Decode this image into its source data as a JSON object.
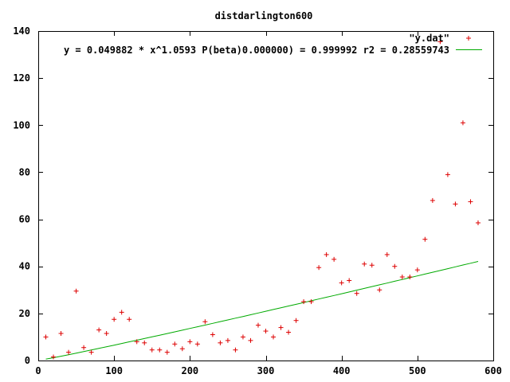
{
  "chart_data": {
    "type": "scatter",
    "title": "distdarlington600",
    "xlabel": "",
    "ylabel": "",
    "xlim": [
      0,
      600
    ],
    "ylim": [
      0,
      140
    ],
    "x_ticks": [
      0,
      100,
      200,
      300,
      400,
      500,
      600
    ],
    "y_ticks": [
      0,
      20,
      40,
      60,
      80,
      100,
      120,
      140
    ],
    "grid": false,
    "legend_position": "top-right",
    "series": [
      {
        "name": "\"y.dat\"",
        "kind": "points",
        "marker": "plus",
        "color": "#dd0000",
        "points": [
          [
            10,
            10
          ],
          [
            20,
            1.5
          ],
          [
            30,
            11.5
          ],
          [
            40,
            3.5
          ],
          [
            50,
            29.5
          ],
          [
            60,
            5.5
          ],
          [
            70,
            3.5
          ],
          [
            80,
            13
          ],
          [
            90,
            11.5
          ],
          [
            100,
            17.5
          ],
          [
            110,
            20.5
          ],
          [
            120,
            17.5
          ],
          [
            130,
            8
          ],
          [
            140,
            7.5
          ],
          [
            150,
            4.5
          ],
          [
            160,
            4.5
          ],
          [
            170,
            3.5
          ],
          [
            180,
            7
          ],
          [
            190,
            5
          ],
          [
            200,
            8
          ],
          [
            210,
            7
          ],
          [
            220,
            16.5
          ],
          [
            230,
            11
          ],
          [
            240,
            7.5
          ],
          [
            250,
            8.5
          ],
          [
            260,
            4.5
          ],
          [
            270,
            10
          ],
          [
            280,
            8.5
          ],
          [
            290,
            15
          ],
          [
            300,
            12.5
          ],
          [
            310,
            10
          ],
          [
            320,
            14
          ],
          [
            330,
            12
          ],
          [
            340,
            17
          ],
          [
            350,
            25
          ],
          [
            360,
            25
          ],
          [
            370,
            39.5
          ],
          [
            380,
            45
          ],
          [
            390,
            43
          ],
          [
            400,
            33
          ],
          [
            410,
            34
          ],
          [
            420,
            28.5
          ],
          [
            430,
            41
          ],
          [
            440,
            40.5
          ],
          [
            450,
            30
          ],
          [
            460,
            45
          ],
          [
            470,
            40
          ],
          [
            480,
            35.5
          ],
          [
            490,
            35.5
          ],
          [
            500,
            38.5
          ],
          [
            510,
            51.5
          ],
          [
            520,
            68
          ],
          [
            530,
            135.5
          ],
          [
            540,
            79
          ],
          [
            550,
            66.5
          ],
          [
            560,
            101
          ],
          [
            570,
            67.5
          ],
          [
            580,
            58.5
          ]
        ]
      },
      {
        "name": "y = 0.049882 * x^1.0593 P(beta)0.000000) = 0.999992 r2 = 0.28559743",
        "kind": "line",
        "color": "#00aa00",
        "x": [
          10,
          20,
          30,
          40,
          50,
          60,
          70,
          80,
          90,
          100,
          110,
          120,
          130,
          140,
          150,
          160,
          170,
          180,
          190,
          200,
          210,
          220,
          230,
          240,
          250,
          260,
          270,
          280,
          290,
          300,
          310,
          320,
          330,
          340,
          350,
          360,
          370,
          380,
          390,
          400,
          410,
          420,
          430,
          440,
          450,
          460,
          470,
          480,
          490,
          500,
          510,
          520,
          530,
          540,
          550,
          560,
          570,
          580
        ],
        "y": [
          0.57,
          1.19,
          1.83,
          2.48,
          3.14,
          3.81,
          4.48,
          5.16,
          5.85,
          6.54,
          7.24,
          7.93,
          8.63,
          9.34,
          10.04,
          10.75,
          11.46,
          12.18,
          12.9,
          13.62,
          14.34,
          15.06,
          15.79,
          16.52,
          17.25,
          17.98,
          18.71,
          19.45,
          20.18,
          20.92,
          21.66,
          22.4,
          23.15,
          23.89,
          24.63,
          25.38,
          26.13,
          26.88,
          27.63,
          28.38,
          29.13,
          29.89,
          30.64,
          31.4,
          32.16,
          32.92,
          33.68,
          34.44,
          35.2,
          35.96,
          36.73,
          37.49,
          38.26,
          39.03,
          39.8,
          40.57,
          41.34,
          42.11
        ]
      }
    ]
  }
}
